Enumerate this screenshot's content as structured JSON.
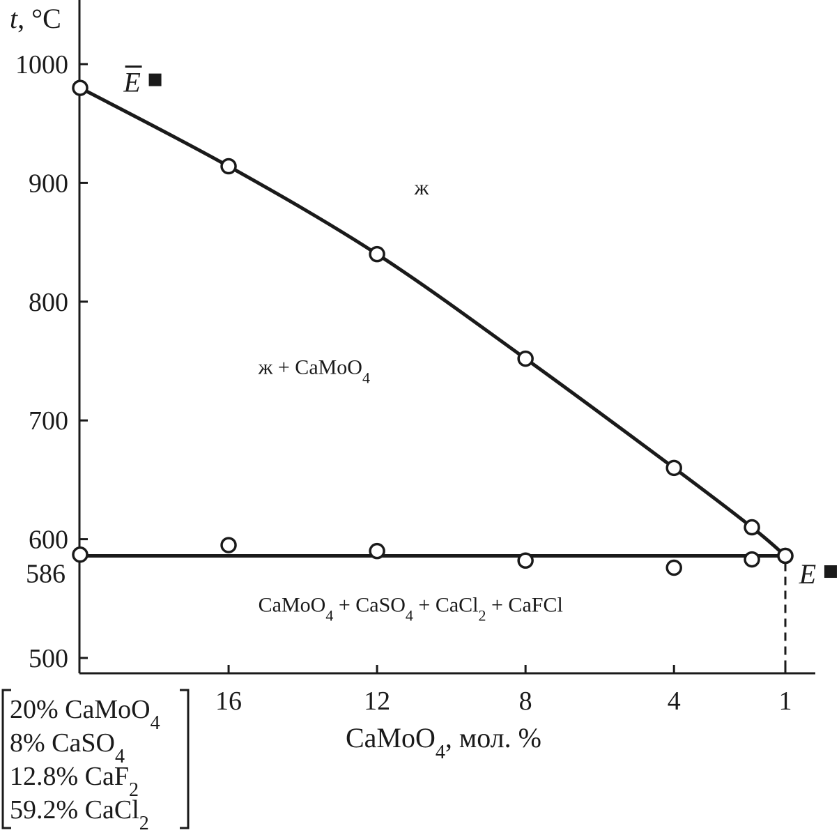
{
  "chart_data": {
    "type": "line",
    "title": "",
    "ylabel_var": "t",
    "ylabel_unit": ", °C",
    "xlabel_main": "CaMoO",
    "xlabel_sub": "4",
    "xlabel_tail": ", мол. %",
    "x_axis_reversed": true,
    "xlim": [
      20,
      0
    ],
    "ylim": [
      490,
      1050
    ],
    "yticks": [
      500,
      600,
      700,
      800,
      900,
      1000
    ],
    "extra_ytick_label": "586",
    "extra_ytick_value": 586,
    "xticks": [
      16,
      12,
      8,
      4,
      1
    ],
    "xtick_positions": [
      16,
      12,
      8,
      4,
      1
    ],
    "grid": false,
    "series": [
      {
        "points": [
          {
            "x": 20,
            "y": 980
          },
          {
            "x": 16,
            "y": 914
          },
          {
            "x": 12,
            "y": 840
          },
          {
            "x": 8,
            "y": 752
          },
          {
            "x": 4,
            "y": 660
          },
          {
            "x": 1.9,
            "y": 610
          },
          {
            "x": 1,
            "y": 586
          }
        ]
      },
      {
        "line_y": 586,
        "points": [
          {
            "x": 20,
            "y": 587
          },
          {
            "x": 16,
            "y": 595
          },
          {
            "x": 12,
            "y": 590
          },
          {
            "x": 8,
            "y": 582
          },
          {
            "x": 4,
            "y": 576
          },
          {
            "x": 1.9,
            "y": 583
          },
          {
            "x": 1,
            "y": 586
          }
        ]
      }
    ],
    "regions": [
      {
        "label": "ж",
        "x": 10.8,
        "y": 895
      },
      {
        "label_main": "ж + CaMoO",
        "label_sub": "4",
        "x": 15.2,
        "y": 745
      },
      {
        "parts": [
          {
            "t": "CaMoO",
            "s": "4"
          },
          {
            "t": " + CaSO",
            "s": "4"
          },
          {
            "t": " + CaCl",
            "s": "2"
          },
          {
            "t": " + CaFCl",
            "s": ""
          }
        ],
        "x": 15.2,
        "y": 545
      }
    ],
    "point_labels": [
      {
        "name": "Ē",
        "letter": "E",
        "overbar": true,
        "x": 18.6,
        "y": 985
      },
      {
        "name": "E",
        "letter": "E",
        "overbar": false,
        "x": 0.4,
        "y": 571
      }
    ],
    "composition": [
      {
        "t": "20% CaMoO",
        "s": "4"
      },
      {
        "t": "8% CaSO",
        "s": "4"
      },
      {
        "t": "12.8% CaF",
        "s": "2"
      },
      {
        "t": "59.2% CaCl",
        "s": "2"
      }
    ]
  }
}
